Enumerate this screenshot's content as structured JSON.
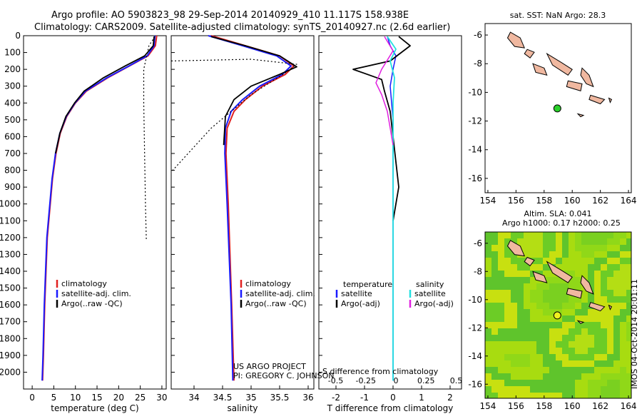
{
  "header": {
    "line1": "Argo profile: AO 5903823_98 29-Sep-2014 20140929_410 11.117S 158.938E",
    "line2": "Climatology: CARS2009. Satellite-adjusted climatology: synTS_20140927.nc (2.6d earlier)"
  },
  "credit": {
    "line1": "US ARGO PROJECT",
    "line2": "PI: GREGORY C. JOHNSON"
  },
  "stamp": "IMOS 04-Oct-2014 20:01:11",
  "colors": {
    "climatology": "#e02020",
    "satellite": "#1a1aff",
    "argo": "#000000",
    "sal_sat": "#22e0e0",
    "sal_argo": "#e020e0",
    "land": "#f0b8a0",
    "sst_marker": "#2ad02a",
    "sla_marker": "#f0f020"
  },
  "chart_data": [
    {
      "type": "line",
      "name": "temperature-profile",
      "xlabel": "temperature (deg C)",
      "ylabel": "",
      "xlim": [
        -2,
        31
      ],
      "ylim": [
        2100,
        0
      ],
      "y_inverted": true,
      "xticks": [
        0,
        5,
        10,
        15,
        20,
        25,
        30
      ],
      "yticks": [
        0,
        100,
        200,
        300,
        400,
        500,
        600,
        700,
        800,
        900,
        1000,
        1100,
        1200,
        1300,
        1400,
        1500,
        1600,
        1700,
        1800,
        1900,
        2000
      ],
      "legend": [
        "climatology",
        "satellite-adj. clim.",
        "Argo(..raw -QC)"
      ],
      "legend_loc": "lower-center",
      "series": [
        {
          "name": "climatology",
          "role": "clim",
          "x": [
            28.8,
            28.5,
            26.8,
            22.5,
            17.5,
            12.5,
            10.0,
            8.0,
            6.5,
            5.5,
            4.7,
            3.5,
            2.9,
            2.6,
            2.4
          ],
          "y": [
            0,
            60,
            120,
            180,
            250,
            330,
            400,
            480,
            580,
            700,
            850,
            1200,
            1600,
            1900,
            2050
          ]
        },
        {
          "name": "satellite-adj. clim.",
          "role": "sat",
          "x": [
            28.4,
            28.2,
            26.6,
            22.4,
            17.3,
            12.3,
            9.9,
            7.9,
            6.4,
            5.4,
            4.6,
            3.4,
            2.8,
            2.5,
            2.3
          ],
          "y": [
            0,
            60,
            120,
            180,
            250,
            330,
            400,
            480,
            580,
            700,
            850,
            1200,
            1600,
            1900,
            2050
          ]
        },
        {
          "name": "Argo(..raw -QC)",
          "role": "argo",
          "x": [
            28.2,
            28.0,
            26.0,
            21.5,
            16.5,
            12.0,
            9.8,
            7.8,
            6.4,
            5.4
          ],
          "y": [
            5,
            60,
            120,
            180,
            250,
            330,
            400,
            480,
            580,
            700
          ]
        },
        {
          "name": "raw",
          "role": "raw",
          "x": [
            28.4,
            27.0,
            25.8,
            25.8,
            26.0,
            26.2,
            26.4
          ],
          "y": [
            5,
            60,
            200,
            400,
            700,
            1000,
            1210
          ]
        }
      ]
    },
    {
      "type": "line",
      "name": "salinity-profile",
      "xlabel": "salinity",
      "ylabel": "",
      "xlim": [
        33.6,
        36.1
      ],
      "ylim": [
        2100,
        0
      ],
      "y_inverted": true,
      "xticks": [
        34,
        34.5,
        35,
        35.5,
        36
      ],
      "legend": [
        "climatology",
        "satellite-adj. clim.",
        "Argo(..raw -QC)"
      ],
      "legend_loc": "lower-right",
      "series": [
        {
          "name": "climatology",
          "role": "clim",
          "x": [
            34.3,
            34.9,
            35.5,
            35.75,
            35.6,
            35.2,
            34.9,
            34.7,
            34.58,
            34.56,
            34.6,
            34.66,
            34.7
          ],
          "y": [
            0,
            60,
            120,
            180,
            230,
            300,
            380,
            450,
            550,
            700,
            1000,
            1600,
            2050
          ]
        },
        {
          "name": "satellite-adj. clim.",
          "role": "sat",
          "x": [
            34.25,
            34.85,
            35.45,
            35.7,
            35.55,
            35.15,
            34.85,
            34.65,
            34.55,
            34.54,
            34.58,
            34.65,
            34.68
          ],
          "y": [
            0,
            60,
            120,
            180,
            230,
            300,
            380,
            450,
            550,
            700,
            1000,
            1600,
            2050
          ]
        },
        {
          "name": "Argo(..raw -QC)",
          "role": "argo",
          "x": [
            34.3,
            34.9,
            35.5,
            35.8,
            35.5,
            35.0,
            34.7,
            34.55,
            34.52
          ],
          "y": [
            5,
            60,
            120,
            185,
            230,
            300,
            380,
            480,
            650
          ]
        },
        {
          "name": "raw",
          "role": "raw",
          "x": [
            33.6,
            35.0,
            35.8,
            35.6,
            35.0,
            34.3,
            33.6
          ],
          "y": [
            150,
            140,
            170,
            220,
            350,
            550,
            810
          ]
        }
      ]
    },
    {
      "type": "line",
      "name": "difference-profile",
      "xlabel": "T difference from climatology",
      "xlabel_top": "S difference from climatology",
      "xlim": [
        -2.6,
        2.4
      ],
      "ylim": [
        2100,
        0
      ],
      "y_inverted": true,
      "xticks": [
        -2,
        -1,
        0,
        1,
        2
      ],
      "s_ticks": [
        "-0.5",
        "-0.25",
        "0",
        "0.25",
        "0.5"
      ],
      "legend_temperature": {
        "title": "temperature",
        "items": [
          "satellite",
          "Argo(-adj)"
        ]
      },
      "legend_salinity": {
        "title": "salinity",
        "items": [
          "satellite",
          "Argo(-adj)"
        ]
      },
      "series": [
        {
          "name": "T satellite",
          "role": "tsat",
          "x": [
            -0.2,
            -0.1,
            0.1,
            0.0,
            -0.1,
            -0.05,
            0.0,
            0.0,
            0.0,
            0.0
          ],
          "y": [
            5,
            60,
            120,
            200,
            300,
            400,
            500,
            700,
            1000,
            2050
          ]
        },
        {
          "name": "T Argo(-adj)",
          "role": "targo",
          "x": [
            0.2,
            0.6,
            -0.1,
            -1.4,
            -0.4,
            -0.3,
            -0.1,
            0.0,
            0.1,
            0.2,
            0.1,
            0.0
          ],
          "y": [
            5,
            60,
            150,
            200,
            260,
            330,
            450,
            600,
            750,
            900,
            1000,
            1100
          ]
        },
        {
          "name": "S satellite",
          "role": "ssat",
          "x": [
            -0.2,
            0.1,
            -0.1,
            0.05,
            0.0,
            0.0,
            0.0
          ],
          "y": [
            5,
            80,
            150,
            250,
            400,
            700,
            2050
          ]
        },
        {
          "name": "S Argo(-adj)",
          "role": "sargo",
          "x": [
            -0.3,
            0.0,
            -0.4,
            -0.6,
            -0.4,
            -0.2,
            -0.1,
            0.0
          ],
          "y": [
            5,
            90,
            200,
            280,
            350,
            450,
            550,
            650
          ]
        }
      ]
    },
    {
      "type": "scatter",
      "name": "sst-map",
      "title": "sat. SST: NaN Argo: 28.3",
      "xlim": [
        153.8,
        164.2
      ],
      "ylim": [
        -17,
        -5.2
      ],
      "xticks": [
        154,
        156,
        158,
        160,
        162,
        164
      ],
      "yticks": [
        -6,
        -8,
        -10,
        -12,
        -14,
        -16
      ],
      "marker": {
        "lon": 158.94,
        "lat": -11.12
      }
    },
    {
      "type": "heatmap",
      "name": "sla-map",
      "title": "Altim. SLA: 0.041",
      "subtitle": "Argo h1000: 0.17 h2000: 0.25",
      "xlim": [
        153.8,
        164.2
      ],
      "ylim": [
        -17,
        -5.2
      ],
      "xticks": [
        154,
        156,
        158,
        160,
        162,
        164
      ],
      "yticks": [
        -6,
        -8,
        -10,
        -12,
        -14,
        -16
      ],
      "marker": {
        "lon": 158.94,
        "lat": -11.12
      }
    }
  ]
}
